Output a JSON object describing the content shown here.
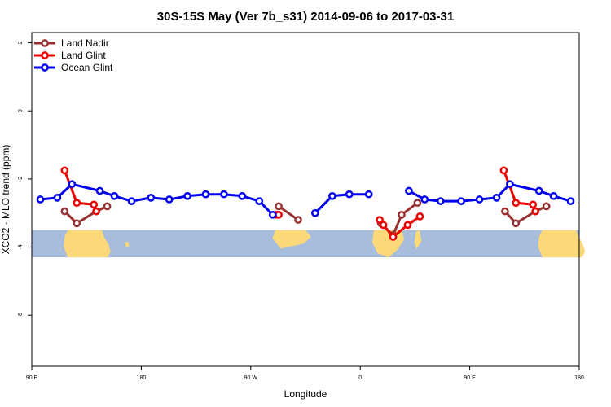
{
  "chart_data": {
    "type": "line",
    "title": "30S-15S May (Ver 7b_s31)   2014-09-06 to 2017-03-31",
    "xlabel": "Longitude",
    "ylabel": "XCO2 - MLO trend (ppm)",
    "xlim": [
      0,
      450
    ],
    "ylim": [
      -7.5,
      2.3
    ],
    "x_ticks": [
      {
        "value": 0,
        "label": "90 E"
      },
      {
        "value": 90,
        "label": "180"
      },
      {
        "value": 180,
        "label": "90 W"
      },
      {
        "value": 270,
        "label": "0"
      },
      {
        "value": 360,
        "label": "90 E"
      },
      {
        "value": 450,
        "label": "180"
      }
    ],
    "y_ticks": [
      {
        "value": 2,
        "label": "2"
      },
      {
        "value": 0,
        "label": "0"
      },
      {
        "value": -2,
        "label": "-2"
      },
      {
        "value": -4,
        "label": "-4"
      },
      {
        "value": -6,
        "label": "-6"
      }
    ],
    "legend_position": "top-left",
    "grid": false,
    "map_band": {
      "y_top": -3.5,
      "y_bottom": -4.3,
      "ocean_color": "#a8bcdc",
      "land_color": "#fcd978"
    },
    "series": [
      {
        "name": "Land Nadir",
        "color": "#983232",
        "segments": [
          [
            [
              27,
              -2.95
            ],
            [
              37,
              -3.3
            ],
            [
              53,
              -2.95
            ],
            [
              62,
              -2.8
            ]
          ],
          [
            [
              203,
              -2.8
            ],
            [
              219,
              -3.2
            ]
          ],
          [
            [
              287,
              -3.3
            ],
            [
              297,
              -3.65
            ],
            [
              304,
              -3.05
            ],
            [
              317,
              -2.7
            ]
          ],
          [
            [
              389,
              -2.95
            ],
            [
              398,
              -3.3
            ],
            [
              414,
              -2.95
            ],
            [
              423,
              -2.8
            ]
          ]
        ]
      },
      {
        "name": "Land Glint",
        "color": "#ee0000",
        "segments": [
          [
            [
              27,
              -1.75
            ],
            [
              37,
              -2.7
            ],
            [
              51,
              -2.75
            ],
            [
              53,
              -2.95
            ]
          ],
          [
            [
              201,
              -3.05
            ],
            [
              203,
              -3.05
            ]
          ],
          [
            [
              286,
              -3.2
            ],
            [
              289,
              -3.35
            ],
            [
              297,
              -3.7
            ],
            [
              309,
              -3.35
            ],
            [
              319,
              -3.1
            ]
          ],
          [
            [
              388,
              -1.75
            ],
            [
              398,
              -2.7
            ],
            [
              412,
              -2.75
            ],
            [
              414,
              -2.95
            ]
          ]
        ]
      },
      {
        "name": "Ocean Glint",
        "color": "#0000ee",
        "segments": [
          [
            [
              7,
              -2.6
            ],
            [
              21,
              -2.55
            ],
            [
              33,
              -2.15
            ],
            [
              56,
              -2.35
            ],
            [
              68,
              -2.5
            ],
            [
              82,
              -2.65
            ],
            [
              98,
              -2.55
            ],
            [
              113,
              -2.6
            ],
            [
              128,
              -2.5
            ],
            [
              143,
              -2.45
            ],
            [
              158,
              -2.45
            ],
            [
              173,
              -2.5
            ],
            [
              187,
              -2.65
            ],
            [
              198,
              -3.05
            ]
          ],
          [
            [
              233,
              -3.0
            ],
            [
              247,
              -2.5
            ],
            [
              261,
              -2.45
            ],
            [
              277,
              -2.45
            ]
          ],
          [
            [
              310,
              -2.35
            ],
            [
              323,
              -2.6
            ],
            [
              336,
              -2.65
            ],
            [
              353,
              -2.65
            ],
            [
              368,
              -2.6
            ],
            [
              382,
              -2.55
            ],
            [
              393,
              -2.15
            ],
            [
              417,
              -2.35
            ],
            [
              429,
              -2.5
            ],
            [
              443,
              -2.65
            ]
          ]
        ]
      }
    ]
  }
}
